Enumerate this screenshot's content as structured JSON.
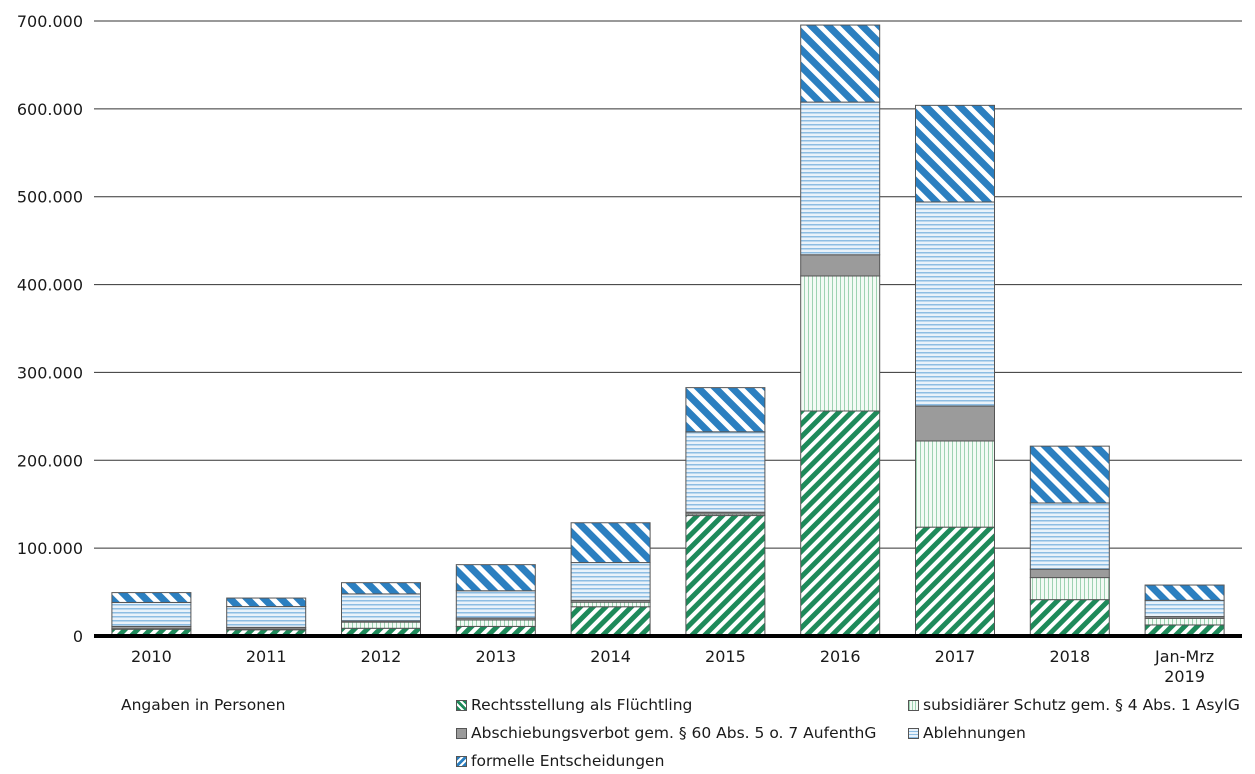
{
  "chart_data": {
    "type": "bar",
    "stacked": true,
    "categories": [
      "2010",
      "2011",
      "2012",
      "2013",
      "2014",
      "2015",
      "2016",
      "2017",
      "2018",
      "Jan-Mrz\n2019"
    ],
    "series": [
      {
        "name": "Rechtsstellung als Flüchtling",
        "color": "#1e8a5a",
        "pattern": "diagonal stripes (green)",
        "values": [
          7700,
          7100,
          8800,
          10900,
          33300,
          137100,
          256100,
          123900,
          41400,
          12600
        ]
      },
      {
        "name": "subsidiärer Schutz gem. § 4 Abs. 1 AsylG",
        "color": "#8fcca8",
        "pattern": "fine vertical lines (light green)",
        "values": [
          500,
          700,
          7000,
          7300,
          5200,
          1700,
          153700,
          98100,
          25100,
          7500
        ]
      },
      {
        "name": "Abschiebungsverbot gem. § 60 Abs. 5 o. 7 AufenthG",
        "color": "#9b9b9b",
        "pattern": "solid grey",
        "values": [
          2700,
          2000,
          1400,
          2200,
          2100,
          2100,
          24100,
          39700,
          9500,
          2000
        ]
      },
      {
        "name": "Ablehnungen",
        "color": "#7fb2dc",
        "pattern": "horizontal lines (light blue)",
        "values": [
          27300,
          23700,
          30700,
          31100,
          43000,
          91500,
          173800,
          232300,
          75400,
          18500
        ]
      },
      {
        "name": "formelle Entscheidungen",
        "color": "#2b7fc0",
        "pattern": "diagonal stripes (blue)",
        "values": [
          11200,
          9700,
          12800,
          29700,
          45300,
          50300,
          87700,
          110000,
          64700,
          17400
        ]
      }
    ],
    "ylim": [
      0,
      700000
    ],
    "yticks": [
      "0",
      "100.000",
      "200.000",
      "300.000",
      "400.000",
      "500.000",
      "600.000",
      "700.000"
    ],
    "ytick_values": [
      0,
      100000,
      200000,
      300000,
      400000,
      500000,
      600000,
      700000
    ],
    "grid": "horizontal",
    "xlabel": "",
    "ylabel": "",
    "legend_position": "bottom"
  },
  "note": "Angaben in Personen"
}
